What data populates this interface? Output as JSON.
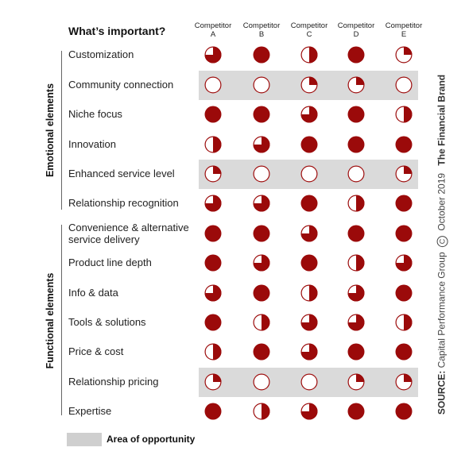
{
  "header": {
    "title": "What’s important?"
  },
  "competitors": [
    {
      "line1": "Competitor",
      "line2": "A"
    },
    {
      "line1": "Competitor",
      "line2": "B"
    },
    {
      "line1": "Competitor",
      "line2": "C"
    },
    {
      "line1": "Competitor",
      "line2": "D"
    },
    {
      "line1": "Competitor",
      "line2": "E"
    }
  ],
  "groups": [
    {
      "label": "Emotional elements"
    },
    {
      "label": "Functional elements"
    }
  ],
  "rows": [
    {
      "label": "Customization"
    },
    {
      "label": "Community connection"
    },
    {
      "label": "Niche focus"
    },
    {
      "label": "Innovation"
    },
    {
      "label": "Enhanced service level"
    },
    {
      "label": "Relationship recognition"
    },
    {
      "label": "Convenience & alternative",
      "label2": "service delivery"
    },
    {
      "label": "Product line depth"
    },
    {
      "label": "Info & data"
    },
    {
      "label": "Tools & solutions"
    },
    {
      "label": "Price & cost"
    },
    {
      "label": "Relationship pricing"
    },
    {
      "label": "Expertise"
    }
  ],
  "legend": {
    "label": "Area of opportunity"
  },
  "source": {
    "prefix": "SOURCE:",
    "text": "Capital Performance Group",
    "copyright": "C",
    "date": "October 2019",
    "brand": "The Financial Brand"
  },
  "colors": {
    "fill": "#9b0a0a",
    "band": "#dadada",
    "legend_swatch": "#cfcfcf"
  },
  "chart_data": {
    "type": "harvey-ball-matrix",
    "title": "What’s important?",
    "columns": [
      "Competitor A",
      "Competitor B",
      "Competitor C",
      "Competitor D",
      "Competitor E"
    ],
    "rows": [
      "Customization",
      "Community connection",
      "Niche focus",
      "Innovation",
      "Enhanced service level",
      "Relationship recognition",
      "Convenience & alternative service delivery",
      "Product line depth",
      "Info & data",
      "Tools & solutions",
      "Price & cost",
      "Relationship pricing",
      "Expertise"
    ],
    "groups": [
      {
        "name": "Emotional elements",
        "rows": [
          0,
          5
        ]
      },
      {
        "name": "Functional elements",
        "rows": [
          6,
          12
        ]
      }
    ],
    "area_of_opportunity_rows": [
      1,
      4,
      11
    ],
    "values": [
      [
        0.75,
        1,
        0.5,
        1,
        0.25
      ],
      [
        0,
        0,
        0.25,
        0.25,
        0
      ],
      [
        1,
        1,
        0.75,
        1,
        0.5
      ],
      [
        0.5,
        0.75,
        1,
        1,
        1
      ],
      [
        0.25,
        0,
        0,
        0,
        0.25
      ],
      [
        0.75,
        0.75,
        1,
        0.5,
        1
      ],
      [
        1,
        1,
        0.75,
        1,
        1
      ],
      [
        1,
        0.75,
        1,
        0.5,
        0.75
      ],
      [
        0.75,
        1,
        0.5,
        0.75,
        1
      ],
      [
        1,
        0.5,
        0.75,
        0.75,
        0.5
      ],
      [
        0.5,
        1,
        0.75,
        1,
        1
      ],
      [
        0.25,
        0,
        0,
        0.25,
        0.25
      ],
      [
        1,
        0.5,
        0.75,
        1,
        1
      ]
    ],
    "scale": "fraction of circle filled (0 = empty, 1 = full)",
    "legend": "Area of opportunity"
  }
}
